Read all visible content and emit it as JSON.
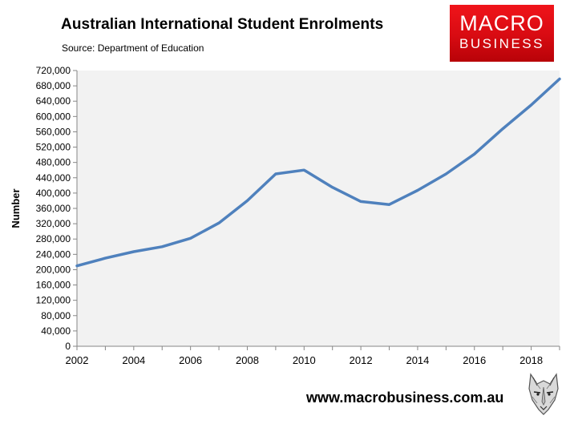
{
  "header": {
    "title": "Australian International Student Enrolments",
    "subtitle": "Source: Department of Education"
  },
  "logo": {
    "line1": "MACRO",
    "line2": "BUSINESS",
    "color": "#e0151a"
  },
  "footer": {
    "website": "www.macrobusiness.com.au",
    "mascot_icon": "wolf-head-icon"
  },
  "chart_data": {
    "type": "line",
    "title": "Australian International Student Enrolments",
    "ylabel": "Number",
    "xlabel": "",
    "x": [
      2002,
      2003,
      2004,
      2005,
      2006,
      2007,
      2008,
      2009,
      2010,
      2011,
      2012,
      2013,
      2014,
      2015,
      2016,
      2017,
      2018,
      2019
    ],
    "series": [
      {
        "values": [
          210000,
          230000,
          247000,
          260000,
          282000,
          322000,
          380000,
          450000,
          460000,
          415000,
          378000,
          370000,
          407000,
          450000,
          502000,
          568000,
          630000,
          698000
        ],
        "color": "#4f81bd"
      }
    ],
    "ylim": [
      0,
      720000
    ],
    "yticks": [
      0,
      40000,
      80000,
      120000,
      160000,
      200000,
      240000,
      280000,
      320000,
      360000,
      400000,
      440000,
      480000,
      520000,
      560000,
      600000,
      640000,
      680000,
      720000
    ],
    "ytick_labels": [
      "0",
      "40,000",
      "80,000",
      "120,000",
      "160,000",
      "200,000",
      "240,000",
      "280,000",
      "320,000",
      "360,000",
      "400,000",
      "440,000",
      "480,000",
      "520,000",
      "560,000",
      "600,000",
      "640,000",
      "680,000",
      "720,000"
    ],
    "xticks": [
      2002,
      2004,
      2006,
      2008,
      2010,
      2012,
      2014,
      2016,
      2018
    ],
    "xtick_labels": [
      "2002",
      "2004",
      "2006",
      "2008",
      "2010",
      "2012",
      "2014",
      "2016",
      "2018"
    ],
    "grid": false,
    "legend": "none",
    "plot_background": "#f2f2f2"
  }
}
